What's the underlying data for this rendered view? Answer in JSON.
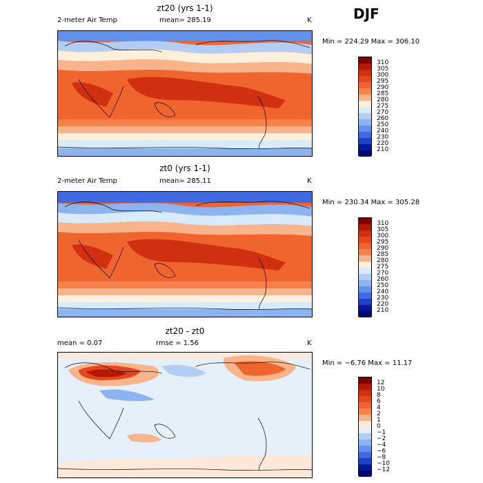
{
  "season": "DJF",
  "panels": [
    {
      "title": "zt20 (yrs 1-1)",
      "left_stat": "2-meter Air Temp",
      "mid_stat": "mean= 285.19",
      "unit": "K",
      "minmax": "Min = 224.29 Max = 306.10",
      "levels": [
        "310",
        "305",
        "300",
        "295",
        "290",
        "285",
        "280",
        "275",
        "270",
        "260",
        "250",
        "240",
        "230",
        "220",
        "210"
      ],
      "colors": [
        "#7f0000",
        "#b31900",
        "#d13010",
        "#e6461e",
        "#f0642d",
        "#f5824b",
        "#fab48c",
        "#fff0dc",
        "#d7ebfa",
        "#b4cdf5",
        "#8cb4f0",
        "#6491eb",
        "#4169e1",
        "#1e41c8",
        "#0019a0",
        "#000a6e"
      ]
    },
    {
      "title": "zt0 (yrs 1-1)",
      "left_stat": "2-meter Air Temp",
      "mid_stat": "mean= 285.11",
      "unit": "K",
      "minmax": "Min = 230.34 Max = 305.28",
      "levels": [
        "310",
        "305",
        "300",
        "295",
        "290",
        "285",
        "280",
        "275",
        "270",
        "260",
        "250",
        "240",
        "230",
        "220",
        "210"
      ],
      "colors": [
        "#7f0000",
        "#b31900",
        "#d13010",
        "#e6461e",
        "#f0642d",
        "#f5824b",
        "#fab48c",
        "#fff0dc",
        "#d7ebfa",
        "#b4cdf5",
        "#8cb4f0",
        "#6491eb",
        "#4169e1",
        "#1e41c8",
        "#0019a0",
        "#000a6e"
      ]
    },
    {
      "title": "zt20 - zt0",
      "left_stat": "mean =    0.07",
      "mid_stat": "rmse =    1.56",
      "unit": "K",
      "minmax": "Min =  −6.76  Max =   11.17",
      "levels": [
        "12",
        "10",
        "8",
        "6",
        "4",
        "2",
        "1",
        "0",
        "−1",
        "−2",
        "−4",
        "−6",
        "−8",
        "−10",
        "−12"
      ],
      "colors": [
        "#7f0000",
        "#b31900",
        "#d13010",
        "#e6461e",
        "#f0642d",
        "#f5824b",
        "#fab48c",
        "#fde8da",
        "#e6f0fa",
        "#b4cdf5",
        "#8cb4f0",
        "#6491eb",
        "#4169e1",
        "#1e41c8",
        "#0019a0",
        "#000a6e"
      ]
    }
  ]
}
